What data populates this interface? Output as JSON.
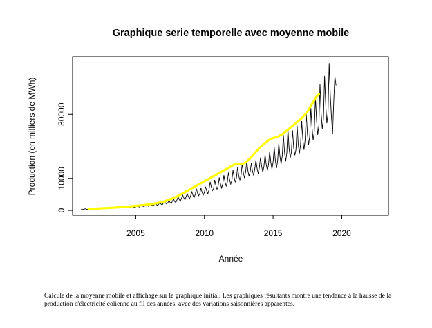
{
  "chart_data": {
    "type": "line",
    "title": "Graphique serie temporelle avec moyenne mobile",
    "xlabel": "Année",
    "ylabel": "Production (en milliers de MWh)",
    "xlim": [
      2000.4,
      2023.4
    ],
    "ylim": [
      -1500,
      48000
    ],
    "x_ticks": [
      2005,
      2010,
      2015,
      2020
    ],
    "y_ticks": [
      0,
      10000,
      30000
    ],
    "grid": false,
    "legend": "none",
    "x_start": 2001.0,
    "x_step": 0.0833333,
    "series": [
      {
        "color": "#000000",
        "values": [
          200,
          350,
          280,
          420,
          500,
          380,
          300,
          450,
          600,
          520,
          410,
          480,
          650,
          560,
          430,
          700,
          780,
          600,
          520,
          640,
          800,
          700,
          550,
          620,
          850,
          900,
          700,
          680,
          760,
          950,
          820,
          700,
          900,
          1000,
          850,
          760,
          950,
          1100,
          880,
          820,
          1000,
          1150,
          950,
          900,
          1200,
          1400,
          1000,
          950,
          1100,
          1650,
          1250,
          1050,
          1300,
          1800,
          1350,
          1200,
          1400,
          1900,
          1500,
          1300,
          1600,
          2100,
          1650,
          1450,
          1750,
          2300,
          1800,
          1600,
          1900,
          2400,
          2000,
          1700,
          2200,
          2800,
          2300,
          2000,
          2400,
          3000,
          2500,
          2100,
          2900,
          3600,
          2800,
          2400,
          3300,
          4200,
          3400,
          2900,
          3800,
          4800,
          3900,
          3300,
          4300,
          5200,
          4300,
          3600,
          4600,
          5800,
          4700,
          4000,
          5000,
          6800,
          5400,
          4600,
          5300,
          7000,
          5600,
          4800,
          5700,
          7400,
          6100,
          5200,
          6400,
          8900,
          7400,
          6200,
          6800,
          9500,
          7800,
          6600,
          7600,
          10300,
          8300,
          7000,
          8200,
          11000,
          8900,
          7600,
          8800,
          11800,
          9600,
          8200,
          9400,
          12600,
          10300,
          8800,
          10200,
          13500,
          10800,
          9400,
          11000,
          14600,
          11800,
          10100,
          12000,
          15300,
          12400,
          10600,
          12200,
          14800,
          12300,
          10900,
          12900,
          15700,
          13200,
          11500,
          13400,
          16500,
          13800,
          11900,
          13700,
          17400,
          14400,
          12500,
          14300,
          18400,
          15100,
          12900,
          15000,
          19800,
          15600,
          13200,
          15600,
          21000,
          16900,
          14500,
          17000,
          23500,
          18300,
          15300,
          18000,
          25300,
          19300,
          16400,
          18200,
          25000,
          19700,
          17200,
          19000,
          26500,
          20600,
          17800,
          20500,
          27900,
          22300,
          18900,
          22000,
          30000,
          24000,
          20500,
          23000,
          32000,
          26100,
          21900,
          24600,
          35500,
          28000,
          23600,
          26500,
          39500,
          30300,
          25500,
          28600,
          42000,
          33000,
          27200,
          30400,
          46000,
          36000,
          29200,
          24000,
          34000,
          42000,
          39000
        ]
      },
      {
        "color": "#ffff00",
        "x_start": 2001.5,
        "values": [
          300,
          380,
          420,
          460,
          480,
          500,
          520,
          540,
          560,
          580,
          600,
          620,
          640,
          660,
          680,
          700,
          720,
          740,
          760,
          780,
          800,
          820,
          840,
          860,
          880,
          900,
          930,
          960,
          990,
          1020,
          1050,
          1080,
          1110,
          1140,
          1170,
          1200,
          1230,
          1260,
          1290,
          1320,
          1350,
          1380,
          1410,
          1440,
          1470,
          1500,
          1540,
          1580,
          1620,
          1660,
          1700,
          1750,
          1800,
          1850,
          1900,
          1950,
          2000,
          2060,
          2120,
          2180,
          2240,
          2300,
          2380,
          2460,
          2540,
          2620,
          2700,
          2820,
          2940,
          3060,
          3180,
          3300,
          3450,
          3600,
          3750,
          3900,
          4050,
          4200,
          4380,
          4560,
          4740,
          4920,
          5100,
          5300,
          5500,
          5700,
          5900,
          6100,
          6300,
          6500,
          6700,
          6900,
          7100,
          7300,
          7500,
          7700,
          7900,
          8100,
          8300,
          8500,
          8700,
          8900,
          9100,
          9300,
          9500,
          9700,
          9900,
          10100,
          10300,
          10500,
          10700,
          10900,
          11100,
          11300,
          11500,
          11700,
          11900,
          12100,
          12300,
          12500,
          12700,
          12900,
          13100,
          13300,
          13500,
          13700,
          13900,
          14100,
          14300,
          14400,
          14500,
          14500,
          14450,
          14400,
          14400,
          14500,
          14600,
          14800,
          15000,
          15300,
          15600,
          15900,
          16300,
          16700,
          17100,
          17500,
          17900,
          18300,
          18700,
          19100,
          19500,
          19800,
          20100,
          20400,
          20700,
          21000,
          21300,
          21600,
          21900,
          22100,
          22300,
          22500,
          22600,
          22700,
          22800,
          22900,
          23000,
          23200,
          23400,
          23600,
          23800,
          24000,
          24300,
          24600,
          24900,
          25200,
          25500,
          25800,
          26100,
          26400,
          26700,
          27000,
          27300,
          27600,
          27900,
          28200,
          28500,
          28800,
          29200,
          29600,
          30000,
          30400,
          30800,
          31400,
          32000,
          32600,
          33200,
          33800,
          34400,
          35000,
          35600,
          36000,
          36300,
          36400
        ]
      }
    ]
  },
  "caption": "Calcule de la moyenne mobile et affichage sur le graphique initial.  Les graphiques résultants montre une tendance à la hausse de la production d'électricité éolienne au fil des années, avec des variations saisonnières apparentes."
}
